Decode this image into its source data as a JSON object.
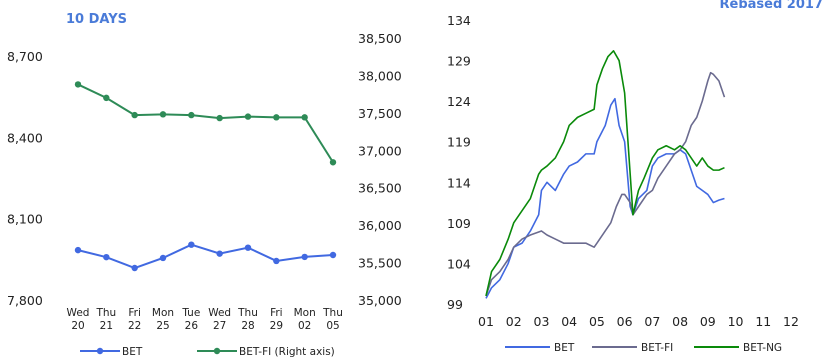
{
  "left_chart": {
    "title": "10 DAYS",
    "chart_data": {
      "type": "line",
      "categories": [
        {
          "day": "Wed",
          "date": "20"
        },
        {
          "day": "Thu",
          "date": "21"
        },
        {
          "day": "Fri",
          "date": "22"
        },
        {
          "day": "Mon",
          "date": "25"
        },
        {
          "day": "Tue",
          "date": "26"
        },
        {
          "day": "Wed",
          "date": "27"
        },
        {
          "day": "Thu",
          "date": "28"
        },
        {
          "day": "Fri",
          "date": "29"
        },
        {
          "day": "Mon",
          "date": "02"
        },
        {
          "day": "Thu",
          "date": "05"
        }
      ],
      "left_axis": {
        "ylim": [
          7800,
          8700
        ],
        "ticks": [
          "7,800",
          "8,100",
          "8,400",
          "8,700"
        ],
        "tick_values": [
          7800,
          8100,
          8400,
          8700
        ]
      },
      "right_axis": {
        "ylim": [
          35000,
          38500
        ],
        "ticks": [
          "35,000",
          "35,500",
          "36,000",
          "36,500",
          "37,000",
          "37,500",
          "38,000",
          "38,500"
        ],
        "tick_values": [
          35000,
          35500,
          36000,
          36500,
          37000,
          37500,
          38000,
          38500
        ]
      },
      "series": [
        {
          "name": "BET",
          "axis": "left",
          "color": "#4169e1",
          "values": [
            7984,
            7958,
            7918,
            7955,
            8004,
            7971,
            7993,
            7944,
            7959,
            7966
          ]
        },
        {
          "name": "BET-FI (Right axis)",
          "axis": "right",
          "color": "#2e8b57",
          "values": [
            37880,
            37700,
            37470,
            37480,
            37470,
            37430,
            37450,
            37440,
            37440,
            36840
          ]
        }
      ]
    }
  },
  "right_chart": {
    "title": "Rebased 2017",
    "chart_data": {
      "type": "line",
      "x_ticks": [
        "01",
        "02",
        "03",
        "04",
        "05",
        "06",
        "07",
        "08",
        "09",
        "10",
        "11",
        "12"
      ],
      "xlim": [
        1,
        12
      ],
      "ylim": [
        99,
        134
      ],
      "y_ticks": [
        "99",
        "104",
        "109",
        "114",
        "119",
        "124",
        "129",
        "134"
      ],
      "y_tick_values": [
        99,
        104,
        109,
        114,
        119,
        124,
        129,
        134
      ],
      "series": [
        {
          "name": "BET",
          "color": "#4169e1",
          "x": [
            1.0,
            1.2,
            1.5,
            1.8,
            2.0,
            2.3,
            2.6,
            2.9,
            3.0,
            3.2,
            3.5,
            3.8,
            4.0,
            4.3,
            4.6,
            4.9,
            5.0,
            5.3,
            5.5,
            5.65,
            5.8,
            6.0,
            6.1,
            6.2,
            6.3,
            6.5,
            6.8,
            7.0,
            7.2,
            7.5,
            7.8,
            8.0,
            8.2,
            8.4,
            8.6,
            8.8,
            9.0,
            9.2,
            9.4,
            9.6
          ],
          "y": [
            99.7,
            101,
            102,
            104,
            106,
            106.5,
            108,
            110,
            113,
            114,
            113,
            115,
            116,
            116.5,
            117.5,
            117.5,
            119,
            121,
            123.5,
            124.3,
            121,
            119,
            115,
            111,
            110,
            112,
            113,
            116,
            117,
            117.5,
            117.5,
            118,
            117.5,
            115.5,
            113.5,
            113,
            112.5,
            111.5,
            111.8,
            112
          ]
        },
        {
          "name": "BET-FI",
          "color": "#6b6b8f",
          "x": [
            1.0,
            1.2,
            1.5,
            1.8,
            2.0,
            2.3,
            2.6,
            3.0,
            3.2,
            3.5,
            3.8,
            4.0,
            4.3,
            4.6,
            4.9,
            5.0,
            5.3,
            5.5,
            5.7,
            5.9,
            6.0,
            6.2,
            6.3,
            6.5,
            6.8,
            7.0,
            7.2,
            7.5,
            7.8,
            8.0,
            8.2,
            8.4,
            8.6,
            8.8,
            9.0,
            9.1,
            9.2,
            9.4,
            9.6
          ],
          "y": [
            100,
            102,
            103,
            104.5,
            106,
            107,
            107.5,
            108,
            107.5,
            107,
            106.5,
            106.5,
            106.5,
            106.5,
            106,
            106.5,
            108,
            109,
            111,
            112.5,
            112.5,
            111.5,
            110,
            111,
            112.5,
            113,
            114.5,
            116,
            117.5,
            118,
            119,
            121,
            122,
            124,
            126.5,
            127.5,
            127.3,
            126.5,
            124.5
          ]
        },
        {
          "name": "BET-NG",
          "color": "#0a8a0a",
          "x": [
            1.0,
            1.2,
            1.5,
            1.8,
            2.0,
            2.3,
            2.6,
            2.9,
            3.0,
            3.2,
            3.5,
            3.8,
            4.0,
            4.3,
            4.6,
            4.9,
            5.0,
            5.2,
            5.4,
            5.6,
            5.8,
            6.0,
            6.1,
            6.2,
            6.3,
            6.5,
            6.7,
            7.0,
            7.2,
            7.5,
            7.8,
            8.0,
            8.2,
            8.4,
            8.6,
            8.8,
            9.0,
            9.2,
            9.4,
            9.6
          ],
          "y": [
            100,
            103,
            104.5,
            107,
            109,
            110.5,
            112,
            115,
            115.5,
            116,
            117,
            119,
            121,
            122,
            122.5,
            123,
            126,
            128,
            129.5,
            130.2,
            129,
            125,
            120,
            115,
            110,
            113,
            114.5,
            117,
            118,
            118.5,
            118,
            118.5,
            118,
            117,
            116,
            117,
            116,
            115.5,
            115.5,
            115.8
          ]
        }
      ]
    }
  }
}
